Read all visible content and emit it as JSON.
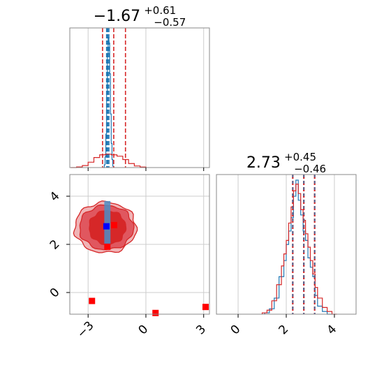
{
  "chart_data": [
    {
      "type": "histogram",
      "panel": "marginal-param-1",
      "title": {
        "main": "−1.67",
        "sup": "+0.61",
        "sub": "−0.57"
      },
      "xlim": [
        -3.95,
        3.3
      ],
      "x_ticks": [
        -3,
        0,
        3
      ],
      "grid": true,
      "series": [
        {
          "color": "#1f77b4",
          "bin_edges": [
            -2.2,
            -2.16,
            -2.12,
            -2.08,
            -2.04,
            -2.0,
            -1.96,
            -1.92,
            -1.88,
            -1.84,
            -1.8,
            -1.76,
            -1.72,
            -1.68
          ],
          "heights": [
            0.0,
            0.02,
            0.08,
            0.25,
            0.55,
            0.85,
            0.97,
            0.93,
            0.7,
            0.4,
            0.18,
            0.06,
            0.01
          ],
          "quantile_lines": [
            -2.04,
            -1.98,
            -1.92
          ]
        },
        {
          "color": "#d62728",
          "bin_edges": [
            -3.9,
            -3.6,
            -3.3,
            -3.0,
            -2.7,
            -2.4,
            -2.1,
            -1.8,
            -1.5,
            -1.2,
            -0.9,
            -0.6,
            -0.3,
            0.0
          ],
          "heights": [
            0.0,
            0.005,
            0.015,
            0.04,
            0.075,
            0.095,
            0.1,
            0.095,
            0.085,
            0.06,
            0.03,
            0.012,
            0.004
          ],
          "quantile_lines": [
            -2.25,
            -1.67,
            -1.06
          ]
        }
      ]
    },
    {
      "type": "scatter-contour",
      "panel": "joint-density",
      "xlim": [
        -3.95,
        3.3
      ],
      "ylim": [
        -0.9,
        4.9
      ],
      "x_ticks": [
        -3,
        0,
        3
      ],
      "y_ticks": [
        0,
        2,
        4
      ],
      "grid": true,
      "contour_levels": [
        {
          "center": [
            -2.1,
            2.7
          ],
          "radius_x": 1.6,
          "radius_y": 1.05,
          "color": "#f0b3b5"
        },
        {
          "center": [
            -2.05,
            2.7
          ],
          "radius_x": 1.4,
          "radius_y": 0.92,
          "color": "#e0575f"
        },
        {
          "center": [
            -2.0,
            2.7
          ],
          "radius_x": 0.95,
          "radius_y": 0.7,
          "color": "#d62728"
        }
      ],
      "blue_band": {
        "x_center": -2.0,
        "x_half_width": 0.16,
        "y": [
          1.8,
          3.8
        ],
        "color": "#4a8fc7"
      },
      "markers": [
        {
          "x": -2.05,
          "y": 2.75,
          "color": "#0000ff"
        },
        {
          "x": -1.65,
          "y": 2.8,
          "color": "#ff0000"
        },
        {
          "x": -2.0,
          "y": 1.9,
          "color": "#ff0000"
        },
        {
          "x": -2.8,
          "y": -0.35,
          "color": "#ff0000"
        },
        {
          "x": 0.5,
          "y": -0.85,
          "color": "#ff0000"
        },
        {
          "x": 3.1,
          "y": -0.6,
          "color": "#ff0000"
        }
      ]
    },
    {
      "type": "histogram",
      "panel": "marginal-param-2",
      "title": {
        "main": "2.73",
        "sup": "+0.45",
        "sub": "−0.46"
      },
      "xlim": [
        -0.9,
        4.9
      ],
      "x_ticks": [
        0,
        2,
        4
      ],
      "grid": true,
      "series": [
        {
          "color": "#1f77b4",
          "bin_edges": [
            1.1,
            1.3,
            1.5,
            1.7,
            1.9,
            2.0,
            2.1,
            2.2,
            2.3,
            2.4,
            2.5,
            2.6,
            2.7,
            2.8,
            2.9,
            3.0,
            3.1,
            3.2,
            3.3,
            3.5,
            3.7,
            3.9
          ],
          "heights": [
            0.01,
            0.04,
            0.12,
            0.28,
            0.4,
            0.52,
            0.62,
            0.72,
            0.88,
            1.0,
            0.85,
            0.74,
            0.62,
            0.55,
            0.42,
            0.35,
            0.28,
            0.14,
            0.06,
            0.02,
            0.0
          ],
          "quantile_lines": [
            2.27,
            2.73,
            3.18
          ]
        },
        {
          "color": "#d62728",
          "bin_edges": [
            1.0,
            1.2,
            1.4,
            1.6,
            1.8,
            1.9,
            2.0,
            2.1,
            2.2,
            2.3,
            2.4,
            2.5,
            2.6,
            2.7,
            2.8,
            2.9,
            3.0,
            3.1,
            3.2,
            3.3,
            3.5,
            3.7,
            3.9,
            4.1
          ],
          "heights": [
            0.01,
            0.03,
            0.1,
            0.22,
            0.36,
            0.45,
            0.55,
            0.68,
            0.8,
            0.92,
            0.97,
            0.9,
            0.78,
            0.7,
            0.6,
            0.5,
            0.4,
            0.3,
            0.2,
            0.12,
            0.05,
            0.02,
            0.0
          ],
          "quantile_lines": [
            2.27,
            2.73,
            3.18
          ]
        }
      ]
    }
  ]
}
